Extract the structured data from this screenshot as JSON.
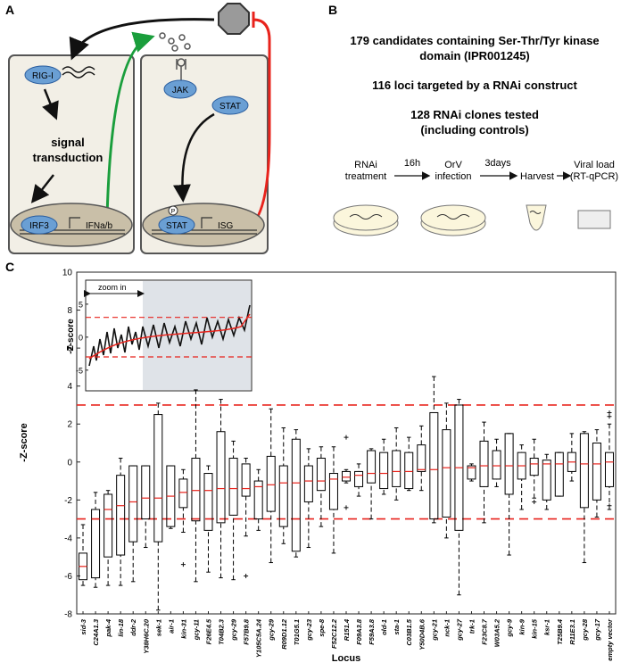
{
  "panel_a": {
    "label": "A",
    "rig": "RIG-I",
    "signal": [
      "signal",
      "transduction"
    ],
    "irf": "IRF3",
    "ifn": "IFNa/b",
    "jak": "JAK",
    "stat_top": "STAT",
    "stat_nuc": "STAT",
    "phospho": "P",
    "isg": "ISG"
  },
  "panel_b": {
    "label": "B",
    "lines": [
      "179 candidates containing Ser-Thr/Tyr kinase",
      "domain (IPR001245)",
      "116 loci targeted by a RNAi construct",
      "128 RNAi clones tested",
      "(including controls)"
    ],
    "steps": [
      [
        "RNAi",
        "treatment"
      ],
      [
        "OrV",
        "infection"
      ],
      [
        "Harvest"
      ],
      [
        "Viral load",
        "(RT-qPCR)"
      ]
    ],
    "durations": [
      "16h",
      "3days"
    ]
  },
  "panel_c": {
    "label": "C"
  },
  "chart_data": {
    "type": "box",
    "xlabel": "Locus",
    "ylabel": "-Z-score",
    "categories": [
      "sid-3",
      "C24A1.3",
      "pak-4",
      "lin-18",
      "ddr-2",
      "Y38H6C.20",
      "sek-1",
      "air-1",
      "kin-31",
      "gcy-11",
      "F26E4.5",
      "T04B2.3",
      "gcy-29",
      "F57B9.8",
      "Y105C5A.24",
      "gcy-29",
      "R09D1.12",
      "T01G5.1",
      "gcy-23",
      "spe-8",
      "F52C12.2",
      "R151.4",
      "F09A3.8",
      "F59A3.8",
      "old-1",
      "sta-1",
      "C03B1.5",
      "Y50D4B.6",
      "gcy-21",
      "nck-1",
      "gcy-27",
      "trk-1",
      "F23C8.7",
      "W03A5.2",
      "gcy-9",
      "kin-9",
      "kin-15",
      "ksr-1",
      "T25B9.4",
      "R11E3.1",
      "gcy-28",
      "gcy-17",
      "empty vector"
    ],
    "stats": [
      [
        -6.5,
        -6.2,
        -5.5,
        -4.8,
        -3.3
      ],
      [
        -6.6,
        -6.1,
        -3.0,
        -2.5,
        -1.6
      ],
      [
        -6.5,
        -5.0,
        -2.5,
        -1.7,
        -1.5
      ],
      [
        -6.5,
        -4.9,
        -2.3,
        -0.7,
        0.2
      ],
      [
        -6.3,
        -4.2,
        -2.1,
        -0.2,
        -0.2
      ],
      [
        -4.5,
        -3.0,
        -1.9,
        -0.2,
        -0.2
      ],
      [
        -7.8,
        -4.2,
        -1.9,
        2.5,
        3.1
      ],
      [
        -3.5,
        -3.4,
        -1.8,
        -0.2,
        -0.2
      ],
      [
        -3.7,
        -2.4,
        -1.6,
        -0.9,
        -0.4
      ],
      [
        -6.3,
        -3.1,
        -1.5,
        0.2,
        3.8
      ],
      [
        -5.8,
        -3.6,
        -1.5,
        -0.6,
        -0.2
      ],
      [
        -6.1,
        -3.2,
        -1.4,
        1.6,
        3.3
      ],
      [
        -6.2,
        -2.8,
        -1.4,
        0.2,
        1.1
      ],
      [
        -3.9,
        -1.8,
        -1.4,
        -0.1,
        0.2
      ],
      [
        -3.6,
        -3.0,
        -1.3,
        -1.0,
        -0.4
      ],
      [
        -5.3,
        -2.6,
        -1.2,
        0.3,
        2.8
      ],
      [
        -4.3,
        -3.4,
        -1.1,
        -0.2,
        1.8
      ],
      [
        -5.0,
        -4.7,
        -1.1,
        1.2,
        1.7
      ],
      [
        -4.5,
        -2.1,
        -1.0,
        -0.2,
        0.7
      ],
      [
        -3.4,
        -1.5,
        -1.0,
        0.2,
        0.8
      ],
      [
        -4.8,
        -2.5,
        -0.9,
        -0.6,
        0.8
      ],
      [
        -1.1,
        -1.0,
        -0.8,
        -0.5,
        -0.4
      ],
      [
        -1.8,
        -1.3,
        -0.7,
        -0.5,
        -0.1
      ],
      [
        -3.0,
        -1.1,
        -0.6,
        0.6,
        0.7
      ],
      [
        -1.7,
        -1.4,
        -0.6,
        0.5,
        1.2
      ],
      [
        -2.0,
        -1.3,
        -0.5,
        0.6,
        1.8
      ],
      [
        -1.5,
        -1.4,
        -0.5,
        0.5,
        1.3
      ],
      [
        -1.5,
        -0.5,
        -0.4,
        0.9,
        1.9
      ],
      [
        -3.2,
        -3.0,
        -0.4,
        2.6,
        4.5
      ],
      [
        -4.0,
        -2.9,
        -0.3,
        1.7,
        3.1
      ],
      [
        -7.0,
        -3.6,
        -0.3,
        3.0,
        3.3
      ],
      [
        -1.0,
        -0.9,
        -0.3,
        -0.2,
        -0.1
      ],
      [
        -3.2,
        -1.3,
        -0.2,
        1.1,
        2.1
      ],
      [
        -1.3,
        -0.9,
        -0.2,
        0.6,
        1.2
      ],
      [
        -4.9,
        -1.7,
        -0.2,
        1.5,
        1.5
      ],
      [
        -2.5,
        -0.9,
        -0.2,
        0.5,
        0.9
      ],
      [
        -1.9,
        -0.7,
        -0.1,
        0.2,
        1.2
      ],
      [
        -2.5,
        -2.0,
        -0.1,
        0.1,
        0.4
      ],
      [
        -1.8,
        -1.8,
        -0.1,
        0.5,
        0.5
      ],
      [
        -1.0,
        -0.5,
        0,
        0.5,
        1.5
      ],
      [
        -5.3,
        -2.4,
        -0.1,
        1.5,
        1.6
      ],
      [
        -2.9,
        -2.0,
        -0.1,
        1.0,
        1.7
      ],
      [
        -2.5,
        -1.3,
        0,
        0.5,
        2.0
      ]
    ],
    "outliers": [
      [],
      [],
      [],
      [],
      [],
      [],
      [],
      [],
      [
        -5.4
      ],
      [],
      [],
      [],
      [],
      [
        -6.0
      ],
      [],
      [],
      [],
      [],
      [],
      [],
      [],
      [
        1.3,
        -2.4
      ],
      [],
      [],
      [],
      [],
      [],
      [],
      [],
      [],
      [],
      [],
      [],
      [],
      [],
      [],
      [
        -2.1
      ],
      [],
      [],
      [],
      [],
      [],
      [
        2.4,
        2.6,
        -2.3
      ]
    ],
    "hlines": [
      3,
      -3
    ],
    "ylim": [
      -8,
      10
    ],
    "yticks": [
      -8,
      -6,
      -4,
      -2,
      0,
      2,
      4,
      6,
      8,
      10
    ],
    "box_color": "#000000",
    "median_color": "#e8231c",
    "threshold_color": "#e8231c"
  },
  "inset": {
    "ylabel": "-Z-score",
    "zoom_label": "zoom in",
    "ylim": [
      -8,
      8.5
    ],
    "yticks": [
      -5,
      0,
      5
    ],
    "hlines": [
      3,
      -3
    ]
  }
}
